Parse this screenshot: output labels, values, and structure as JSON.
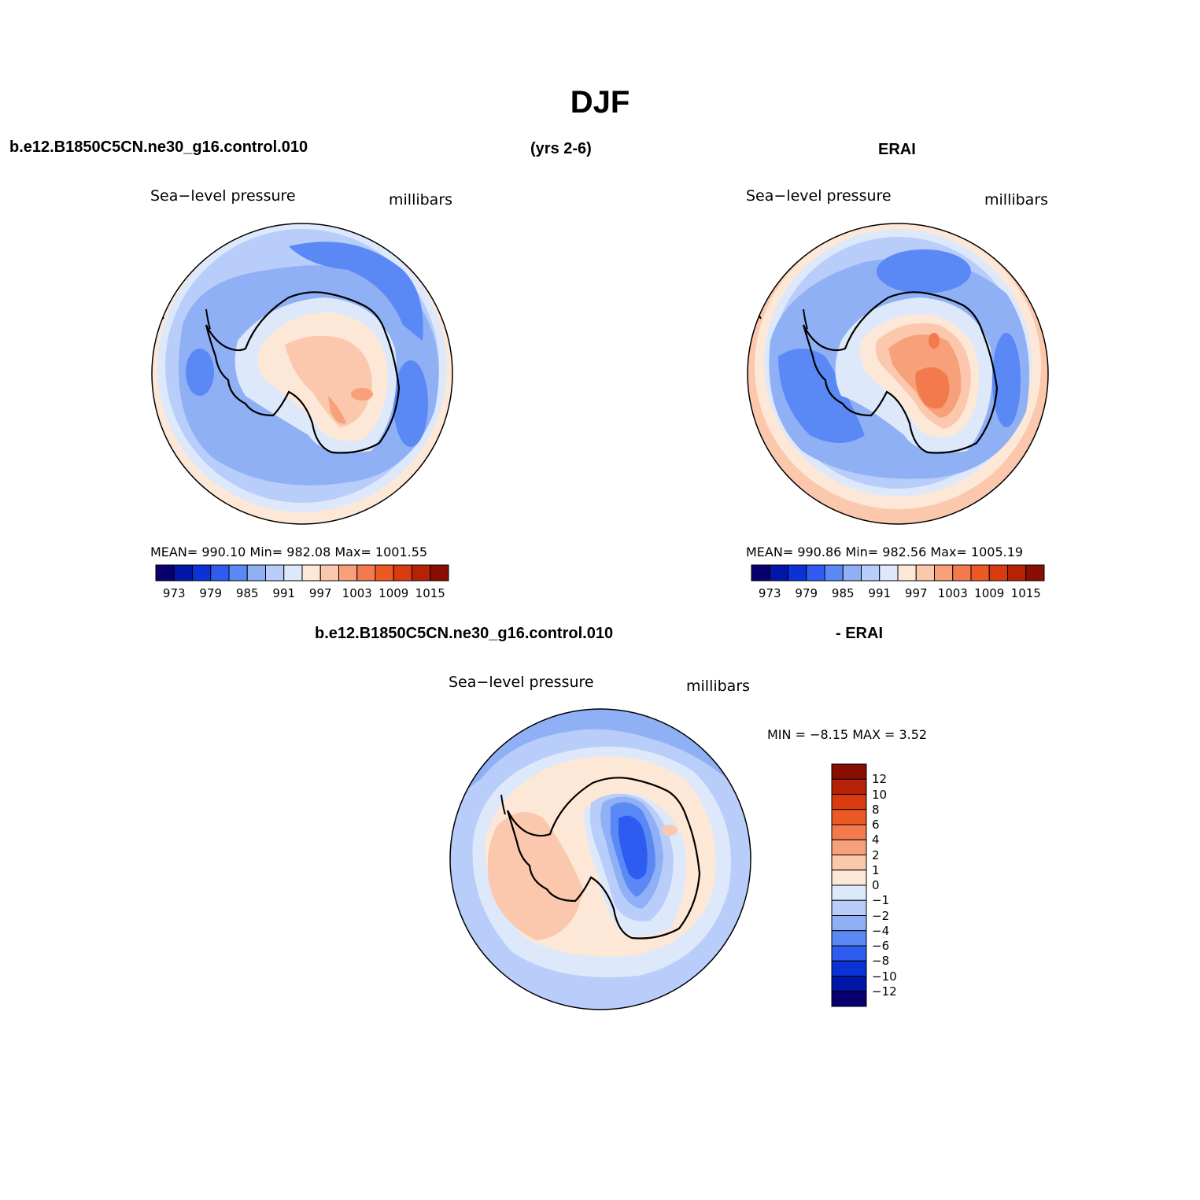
{
  "title": "DJF",
  "header": {
    "case_name": "b.e12.B1850C5CN.ne30_g16.control.010",
    "years": "(yrs 2-6)",
    "obs_name": "ERAI",
    "diff_case": "b.e12.B1850C5CN.ne30_g16.control.010",
    "diff_obs": "- ERAI"
  },
  "panels": {
    "model": {
      "variable": "Sea−level pressure",
      "units": "millibars",
      "stats": "MEAN= 990.10   Min= 982.08   Max= 1001.55"
    },
    "obs": {
      "variable": "Sea−level pressure",
      "units": "millibars",
      "stats": "MEAN= 990.86   Min= 982.56   Max= 1005.19"
    },
    "diff": {
      "variable": "Sea−level pressure",
      "units": "millibars",
      "stats": "MIN =    −8.15  MAX =     3.52"
    }
  },
  "colorbar_abs": {
    "colors": [
      "#08006e",
      "#0016a8",
      "#0a32d6",
      "#2e5cf0",
      "#5a88f5",
      "#8fb0f5",
      "#b8cdfa",
      "#dde9fb",
      "#fde8d7",
      "#fbc8ad",
      "#f7a07a",
      "#f37a4c",
      "#ec5a23",
      "#d93a0f",
      "#b52206",
      "#8a0e02"
    ],
    "tick_labels": [
      "973",
      "979",
      "985",
      "991",
      "997",
      "1003",
      "1009",
      "1015"
    ]
  },
  "colorbar_diff": {
    "colors": [
      "#8a0e02",
      "#b52206",
      "#d93a0f",
      "#ec5a23",
      "#f37a4c",
      "#f7a07a",
      "#fbc8ad",
      "#fde8d7",
      "#dde9fb",
      "#b8cdfa",
      "#8fb0f5",
      "#5a88f5",
      "#2e5cf0",
      "#0a32d6",
      "#0016a8",
      "#08006e"
    ],
    "tick_labels": [
      "12",
      "10",
      "8",
      "6",
      "4",
      "2",
      "1",
      "0",
      "−1",
      "−2",
      "−4",
      "−6",
      "−8",
      "−10",
      "−12"
    ]
  }
}
